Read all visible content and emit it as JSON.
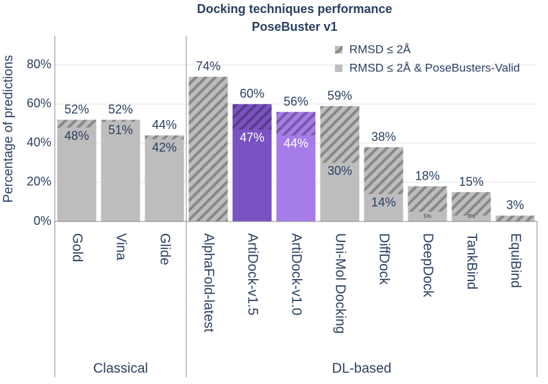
{
  "chart_data": {
    "type": "bar",
    "title": "Docking techniques performance",
    "subtitle": "PoseBuster v1",
    "y_label": "Percentage of predictions",
    "categories": [
      "Gold",
      "Vina",
      "Glide",
      "AlphaFold-latest",
      "ArtiDock-v1.5",
      "ArtiDock-v1.0",
      "Uni-Mol Docking",
      "DiffDock",
      "DeepDock",
      "TankBind",
      "EquiBind"
    ],
    "colors": [
      "#bdbdbd",
      "#bdbdbd",
      "#bdbdbd",
      "#bdbdbd",
      "#7b52c1",
      "#a57ce8",
      "#bdbdbd",
      "#bdbdbd",
      "#bdbdbd",
      "#bdbdbd",
      "#bdbdbd"
    ],
    "groups": [
      {
        "name": "Classical",
        "members": [
          "Gold",
          "Vina",
          "Glide"
        ]
      },
      {
        "name": "DL-based",
        "members": [
          "AlphaFold-latest",
          "ArtiDock-v1.5",
          "ArtiDock-v1.0",
          "Uni-Mol Docking",
          "DiffDock",
          "DeepDock",
          "TankBind",
          "EquiBind"
        ]
      }
    ],
    "series": [
      {
        "name": "RMSD ≤ 2Å",
        "color": "#bdbdbd",
        "hatch": true,
        "values": [
          52,
          52,
          44,
          74,
          60,
          56,
          59,
          38,
          18,
          15,
          3
        ],
        "value_labels": [
          "52%",
          "52%",
          "44%",
          "74%",
          "60%",
          "56%",
          "59%",
          "38%",
          "18%",
          "15%",
          "3%"
        ]
      },
      {
        "name": "RMSD ≤ 2Å & PoseBusters-Valid",
        "color": "#bdbdbd",
        "hatch": false,
        "values": [
          48,
          51,
          42,
          null,
          47,
          44,
          30,
          14,
          5,
          3,
          null
        ],
        "value_labels": [
          "48%",
          "51%",
          "42%",
          null,
          "47%",
          "44%",
          "30%",
          "14%",
          "5%",
          "3%",
          null
        ]
      }
    ],
    "ylim": [
      0,
      95
    ],
    "yticks": [
      {
        "value": 0,
        "label": "0%"
      },
      {
        "value": 20,
        "label": "20%"
      },
      {
        "value": 40,
        "label": "40%"
      },
      {
        "value": 60,
        "label": "60%"
      },
      {
        "value": 80,
        "label": "80%"
      }
    ],
    "grid": true,
    "legend": "top-right"
  }
}
